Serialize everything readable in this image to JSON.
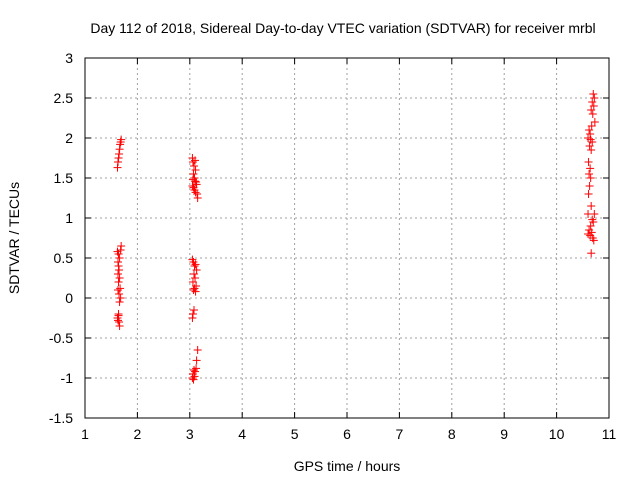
{
  "chart_data": {
    "type": "scatter",
    "title": "Day 112 of 2018, Sidereal Day-to-day VTEC variation (SDTVAR) for receiver mrbl",
    "xlabel": "GPS time / hours",
    "ylabel": "SDTVAR / TECUs",
    "xlim": [
      1,
      11
    ],
    "ylim": [
      -1.5,
      3
    ],
    "xticks": [
      1,
      2,
      3,
      4,
      5,
      6,
      7,
      8,
      9,
      10,
      11
    ],
    "yticks": [
      -1.5,
      -1,
      -0.5,
      0,
      0.5,
      1,
      1.5,
      2,
      2.5,
      3
    ],
    "xtick_labels": [
      "1",
      "2",
      "3",
      "4",
      "5",
      "6",
      "7",
      "8",
      "9",
      "10",
      "11"
    ],
    "ytick_labels": [
      "-1.5",
      "-1",
      "-0.5",
      "0",
      "0.5",
      "1",
      "1.5",
      "2",
      "2.5",
      "3"
    ],
    "grid": true,
    "marker": "plus",
    "colors": {
      "series": "#ff0000",
      "grid": "#a0a0a0",
      "axis": "#000000"
    },
    "series": [
      {
        "points": [
          [
            1.62,
            1.63
          ],
          [
            1.63,
            1.7
          ],
          [
            1.64,
            1.75
          ],
          [
            1.65,
            1.8
          ],
          [
            1.66,
            1.86
          ],
          [
            1.67,
            1.92
          ],
          [
            1.68,
            1.95
          ],
          [
            1.69,
            1.98
          ],
          [
            1.62,
            0.58
          ],
          [
            1.64,
            0.55
          ],
          [
            1.66,
            0.5
          ],
          [
            1.68,
            0.6
          ],
          [
            1.69,
            0.65
          ],
          [
            1.63,
            0.45
          ],
          [
            1.64,
            0.4
          ],
          [
            1.65,
            0.35
          ],
          [
            1.63,
            0.3
          ],
          [
            1.66,
            0.25
          ],
          [
            1.64,
            0.2
          ],
          [
            1.63,
            0.1
          ],
          [
            1.65,
            0.05
          ],
          [
            1.67,
            0.12
          ],
          [
            1.68,
            0.0
          ],
          [
            1.66,
            -0.05
          ],
          [
            1.64,
            -0.2
          ],
          [
            1.62,
            -0.25
          ],
          [
            1.63,
            -0.28
          ],
          [
            1.65,
            -0.3
          ],
          [
            1.66,
            -0.35
          ],
          [
            1.64,
            -0.22
          ],
          [
            3.05,
            1.75
          ],
          [
            3.06,
            1.7
          ],
          [
            3.08,
            1.65
          ],
          [
            3.1,
            1.72
          ],
          [
            3.11,
            1.6
          ],
          [
            3.07,
            1.55
          ],
          [
            3.09,
            1.5
          ],
          [
            3.12,
            1.45
          ],
          [
            3.13,
            1.42
          ],
          [
            3.05,
            1.4
          ],
          [
            3.07,
            1.38
          ],
          [
            3.09,
            1.35
          ],
          [
            3.11,
            1.32
          ],
          [
            3.14,
            1.3
          ],
          [
            3.15,
            1.25
          ],
          [
            3.1,
            1.46
          ],
          [
            3.06,
            1.48
          ],
          [
            3.05,
            0.48
          ],
          [
            3.07,
            0.45
          ],
          [
            3.09,
            0.4
          ],
          [
            3.11,
            0.42
          ],
          [
            3.13,
            0.35
          ],
          [
            3.08,
            0.3
          ],
          [
            3.1,
            0.25
          ],
          [
            3.06,
            0.2
          ],
          [
            3.12,
            0.15
          ],
          [
            3.07,
            0.1
          ],
          [
            3.09,
            0.12
          ],
          [
            3.11,
            0.08
          ],
          [
            3.05,
            -0.25
          ],
          [
            3.06,
            -0.2
          ],
          [
            3.08,
            -0.15
          ],
          [
            3.05,
            -1.0
          ],
          [
            3.06,
            -0.95
          ],
          [
            3.08,
            -0.9
          ],
          [
            3.1,
            -0.92
          ],
          [
            3.07,
            -1.02
          ],
          [
            3.09,
            -0.98
          ],
          [
            3.12,
            -0.88
          ],
          [
            3.13,
            -0.78
          ],
          [
            3.15,
            -0.65
          ],
          [
            10.7,
            2.55
          ],
          [
            10.72,
            2.5
          ],
          [
            10.68,
            2.45
          ],
          [
            10.71,
            2.4
          ],
          [
            10.66,
            2.35
          ],
          [
            10.69,
            2.3
          ],
          [
            10.73,
            2.2
          ],
          [
            10.67,
            2.15
          ],
          [
            10.62,
            2.1
          ],
          [
            10.64,
            2.05
          ],
          [
            10.6,
            2.0
          ],
          [
            10.65,
            1.98
          ],
          [
            10.68,
            1.95
          ],
          [
            10.63,
            1.9
          ],
          [
            10.66,
            1.85
          ],
          [
            10.61,
            1.7
          ],
          [
            10.64,
            1.62
          ],
          [
            10.62,
            1.55
          ],
          [
            10.65,
            1.5
          ],
          [
            10.63,
            1.4
          ],
          [
            10.61,
            1.3
          ],
          [
            10.66,
            1.15
          ],
          [
            10.6,
            1.05
          ],
          [
            10.72,
            1.05
          ],
          [
            10.68,
            0.98
          ],
          [
            10.7,
            0.95
          ],
          [
            10.65,
            0.9
          ],
          [
            10.62,
            0.85
          ],
          [
            10.67,
            0.82
          ],
          [
            10.6,
            0.8
          ],
          [
            10.64,
            0.78
          ],
          [
            10.69,
            0.75
          ],
          [
            10.71,
            0.72
          ],
          [
            10.66,
            0.56
          ]
        ]
      }
    ]
  }
}
